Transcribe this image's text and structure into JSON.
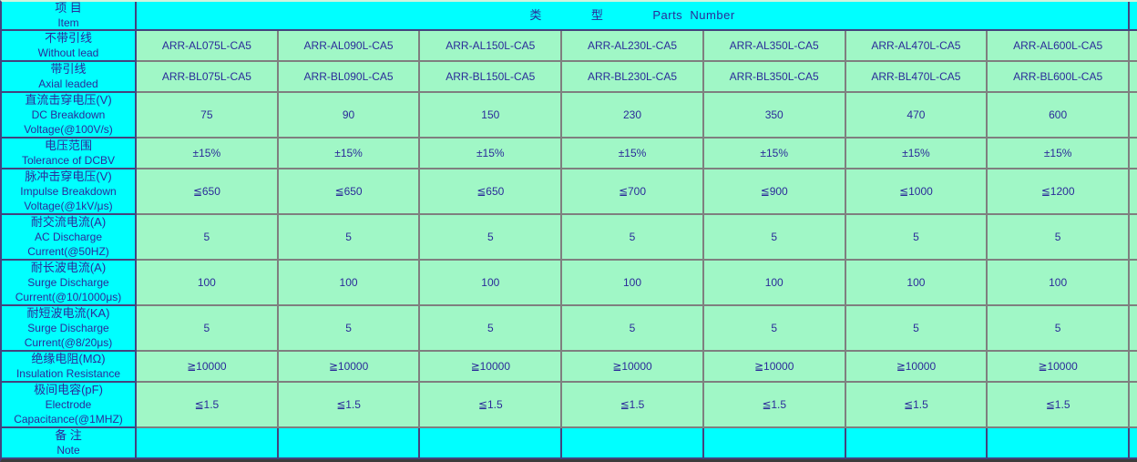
{
  "colors": {
    "header_bg": "#00FFFF",
    "cell_bg": "#A0F7C6",
    "text": "#2B2B99"
  },
  "table": {
    "corner": {
      "cn": "项 目",
      "en": "Item"
    },
    "parts_header": "类　　　　型　　　　Parts  Number",
    "rows": [
      {
        "id": "without-lead",
        "label_cn": "不带引线",
        "label_en": [
          "Without lead"
        ],
        "values": [
          "ARR-AL075L-CA5",
          "ARR-AL090L-CA5",
          "ARR-AL150L-CA5",
          "ARR-AL230L-CA5",
          "ARR-AL350L-CA5",
          "ARR-AL470L-CA5",
          "ARR-AL600L-CA5"
        ]
      },
      {
        "id": "axial-leaded",
        "label_cn": "带引线",
        "label_en": [
          "Axial leaded"
        ],
        "values": [
          "ARR-BL075L-CA5",
          "ARR-BL090L-CA5",
          "ARR-BL150L-CA5",
          "ARR-BL230L-CA5",
          "ARR-BL350L-CA5",
          "ARR-BL470L-CA5",
          "ARR-BL600L-CA5"
        ]
      },
      {
        "id": "dc-breakdown-voltage",
        "label_cn": "直流击穿电压(V)",
        "label_en": [
          "DC Breakdown",
          "Voltage(@100V/s)"
        ],
        "values": [
          "75",
          "90",
          "150",
          "230",
          "350",
          "470",
          "600"
        ]
      },
      {
        "id": "tolerance-of-dcbv",
        "label_cn": "电压范围",
        "label_en": [
          "Tolerance of DCBV"
        ],
        "values": [
          "±15%",
          "±15%",
          "±15%",
          "±15%",
          "±15%",
          "±15%",
          "±15%"
        ]
      },
      {
        "id": "impulse-breakdown-voltage",
        "label_cn": "脉冲击穿电压(V)",
        "label_en": [
          "Impulse Breakdown",
          "Voltage(@1kV/μs)"
        ],
        "values": [
          "≦650",
          "≦650",
          "≦650",
          "≦700",
          "≦900",
          "≦1000",
          "≦1200"
        ]
      },
      {
        "id": "ac-discharge-current",
        "label_cn": "耐交流电流(A)",
        "label_en": [
          "AC Discharge",
          "Current(@50HZ)"
        ],
        "values": [
          "5",
          "5",
          "5",
          "5",
          "5",
          "5",
          "5"
        ]
      },
      {
        "id": "surge-discharge-current-long",
        "label_cn": "耐长波电流(A)",
        "label_en": [
          "Surge Discharge",
          "Current(@10/1000μs)"
        ],
        "values": [
          "100",
          "100",
          "100",
          "100",
          "100",
          "100",
          "100"
        ]
      },
      {
        "id": "surge-discharge-current-short",
        "label_cn": "耐短波电流(KA)",
        "label_en": [
          "Surge Discharge",
          "Current(@8/20μs)"
        ],
        "values": [
          "5",
          "5",
          "5",
          "5",
          "5",
          "5",
          "5"
        ]
      },
      {
        "id": "insulation-resistance",
        "label_cn": "绝缘电阻(MΩ)",
        "label_en": [
          "Insulation Resistance"
        ],
        "values": [
          "≧10000",
          "≧10000",
          "≧10000",
          "≧10000",
          "≧10000",
          "≧10000",
          "≧10000"
        ]
      },
      {
        "id": "electrode-capacitance",
        "label_cn": "极间电容(pF)",
        "label_en": [
          "Electrode",
          "Capacitance(@1MHZ)"
        ],
        "values": [
          "≦1.5",
          "≦1.5",
          "≦1.5",
          "≦1.5",
          "≦1.5",
          "≦1.5",
          "≦1.5"
        ]
      },
      {
        "id": "note",
        "label_cn": "备 注",
        "label_en": [
          "Note"
        ],
        "cyan_data": true,
        "values": [
          "",
          "",
          "",
          "",
          "",
          "",
          ""
        ]
      }
    ]
  }
}
